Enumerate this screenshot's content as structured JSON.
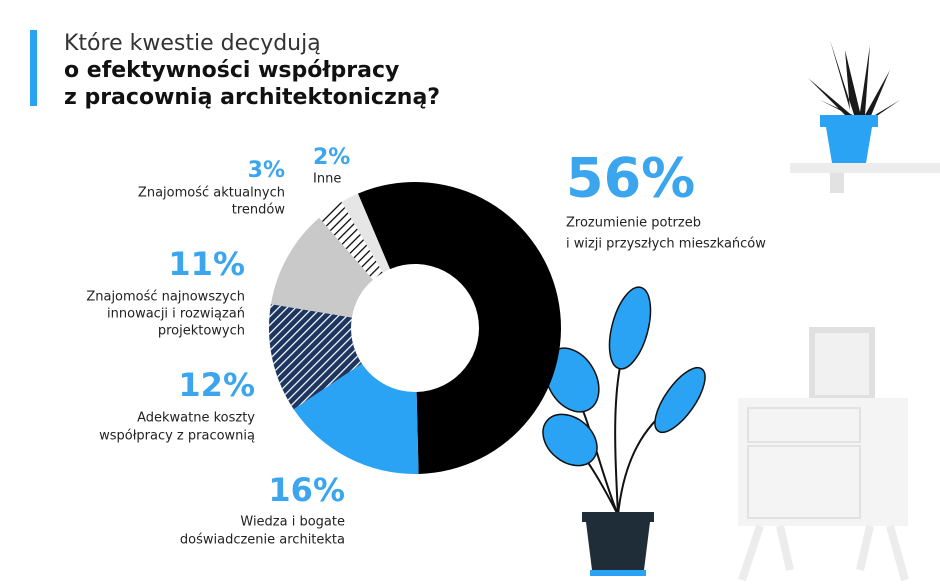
{
  "chart_data": {
    "type": "donut",
    "title": "Które kwestie decydują",
    "title_bold_lines": [
      "o efektywności współpracy",
      "z pracownią architektoniczną?"
    ],
    "categories": [
      [
        "Zrozumienie potrzeb",
        "i wizji przyszłych mieszkańców"
      ],
      [
        "Wiedza i bogate",
        "doświadczenie architekta"
      ],
      [
        "Adekwatne koszty",
        "współpracy z pracownią"
      ],
      [
        "Znajomość najnowszych",
        "innowacji i rozwiązań",
        "projektowych"
      ],
      [
        "Znajomość aktualnych",
        "trendów"
      ],
      [
        "Inne"
      ]
    ],
    "values": [
      56,
      16,
      12,
      11,
      3,
      2
    ],
    "value_labels": [
      "56%",
      "16%",
      "12%",
      "11%",
      "3%",
      "2%"
    ],
    "colors": [
      "#000000",
      "#2aa3f4",
      "#1d3660",
      "#c9c9c9",
      "#ffffff",
      "#e6e6e6"
    ],
    "hatched": [
      false,
      false,
      true,
      false,
      true,
      false
    ]
  }
}
